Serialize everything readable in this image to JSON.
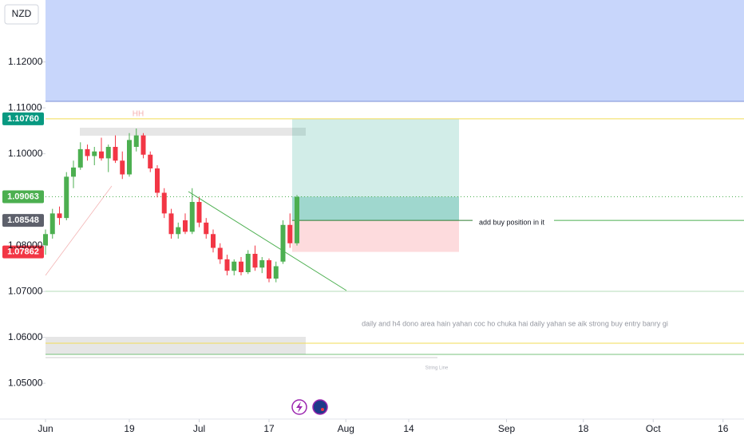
{
  "chart_data": {
    "type": "candlestick",
    "symbol": "NZD",
    "x": [
      0,
      1,
      2,
      3,
      4,
      5,
      6,
      7,
      8,
      9,
      10,
      11,
      12,
      13,
      14,
      15,
      16,
      17,
      18,
      19,
      20,
      21,
      22,
      23,
      24,
      25,
      26,
      27,
      28,
      29,
      30,
      31,
      32,
      33,
      34,
      35,
      36
    ],
    "open": [
      1.08,
      1.0825,
      1.087,
      1.086,
      1.095,
      1.097,
      1.101,
      1.0995,
      1.1005,
      1.099,
      1.1015,
      1.0985,
      1.0955,
      1.1015,
      1.104,
      1.0998,
      1.0968,
      1.0915,
      1.087,
      1.0825,
      1.0855,
      1.083,
      1.0895,
      1.085,
      1.0825,
      1.0795,
      1.077,
      1.0745,
      1.0765,
      1.0742,
      1.0782,
      1.0752,
      1.0768,
      1.0728,
      1.0765,
      1.0845,
      1.0805
    ],
    "high": [
      1.0835,
      1.088,
      1.0885,
      1.096,
      1.0985,
      1.1025,
      1.102,
      1.1015,
      1.1035,
      1.102,
      1.104,
      1.1005,
      1.1045,
      1.1055,
      1.1045,
      1.1005,
      1.0975,
      1.0925,
      1.088,
      1.085,
      1.087,
      1.0925,
      1.0905,
      1.086,
      1.0835,
      1.0805,
      1.078,
      1.077,
      1.0775,
      1.079,
      1.08,
      1.0775,
      1.0772,
      1.0765,
      1.0855,
      1.087,
      1.091
    ],
    "low": [
      1.078,
      1.0815,
      1.0845,
      1.0855,
      1.0925,
      1.0965,
      1.0985,
      1.0975,
      1.0985,
      1.096,
      1.098,
      1.0945,
      1.095,
      1.1005,
      1.099,
      1.096,
      1.0905,
      1.086,
      1.0815,
      1.0815,
      1.0825,
      1.0825,
      1.084,
      1.0815,
      1.0785,
      1.076,
      1.0735,
      1.0735,
      1.0735,
      1.0738,
      1.0745,
      1.074,
      1.072,
      1.072,
      1.076,
      1.0795,
      1.08
    ],
    "close": [
      1.0825,
      1.087,
      1.086,
      1.095,
      1.097,
      1.101,
      1.0995,
      1.1005,
      1.099,
      1.1015,
      1.0985,
      1.0955,
      1.103,
      1.104,
      1.0998,
      1.0968,
      1.0915,
      1.087,
      1.0825,
      1.084,
      1.083,
      1.0895,
      1.085,
      1.0825,
      1.0795,
      1.077,
      1.0745,
      1.0765,
      1.0742,
      1.0782,
      1.0752,
      1.0768,
      1.0728,
      1.0755,
      1.0845,
      1.0805,
      1.0906
    ],
    "up_color": "#4caf50",
    "down_color": "#f23645",
    "xlim": [
      0,
      100
    ],
    "xticks": [
      {
        "value": 0,
        "label": "Jun"
      },
      {
        "value": 12,
        "label": "19"
      },
      {
        "value": 22,
        "label": "Jul"
      },
      {
        "value": 32,
        "label": "17"
      },
      {
        "value": 43,
        "label": "Aug"
      },
      {
        "value": 52,
        "label": "14"
      },
      {
        "value": 66,
        "label": "Sep"
      },
      {
        "value": 77,
        "label": "18"
      },
      {
        "value": 87,
        "label": "Oct"
      },
      {
        "value": 97,
        "label": "16"
      }
    ],
    "ylim": [
      1.0422,
      1.1335
    ],
    "yticks": [
      {
        "value": 1.05,
        "label": "1.05000"
      },
      {
        "value": 1.06,
        "label": "1.06000"
      },
      {
        "value": 1.07,
        "label": "1.07000"
      },
      {
        "value": 1.08,
        "label": "1.08000"
      },
      {
        "value": 1.1,
        "label": "1.10000"
      },
      {
        "value": 1.11,
        "label": "1.11000"
      },
      {
        "value": 1.12,
        "label": "1.12000"
      }
    ],
    "price_labels": [
      {
        "value": 1.1076,
        "label": "1.10760",
        "color": "#089981"
      },
      {
        "value": 1.09063,
        "label": "1.09063",
        "color": "#4caf50"
      },
      {
        "value": 1.08548,
        "label": "1.08548",
        "color": "#5d606b"
      },
      {
        "value": 1.07862,
        "label": "1.07862",
        "color": "#f23645"
      }
    ],
    "annotations": {
      "peak": "HH",
      "position_note": "add buy position in it",
      "analysis": "daily and h4 dono area hain yahan coc ho chuka hai daily yahan se aik strong buy entry banry gi",
      "line_label": "String Line"
    }
  }
}
